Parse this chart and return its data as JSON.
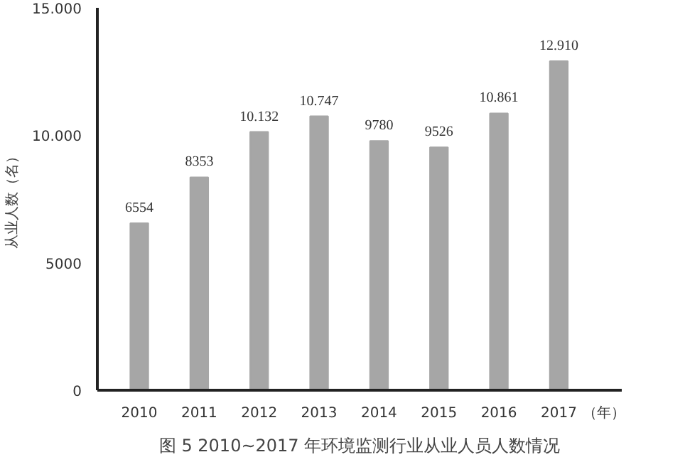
{
  "chart_data": {
    "type": "bar",
    "title": "图 5 2010~2017 年环境监测行业从业人员人数情况",
    "ylabel": "从业人数（名）",
    "xlabel": "（年）",
    "categories": [
      "2010",
      "2011",
      "2012",
      "2013",
      "2014",
      "2015",
      "2016",
      "2017"
    ],
    "values": [
      6554,
      8353,
      10132,
      10747,
      9780,
      9526,
      10861,
      12910
    ],
    "value_labels": [
      "6554",
      "8353",
      "10.132",
      "10.747",
      "9780",
      "9526",
      "10.861",
      "12.910"
    ],
    "color": "#a6a6a6",
    "ylim": [
      0,
      15000
    ],
    "yticks": [
      0,
      {
        "value": 5000,
        "label": "5000"
      },
      {
        "value": 10000,
        "label": "10.000"
      },
      {
        "value": 15000,
        "label": "15.000"
      }
    ],
    "grid": false
  }
}
